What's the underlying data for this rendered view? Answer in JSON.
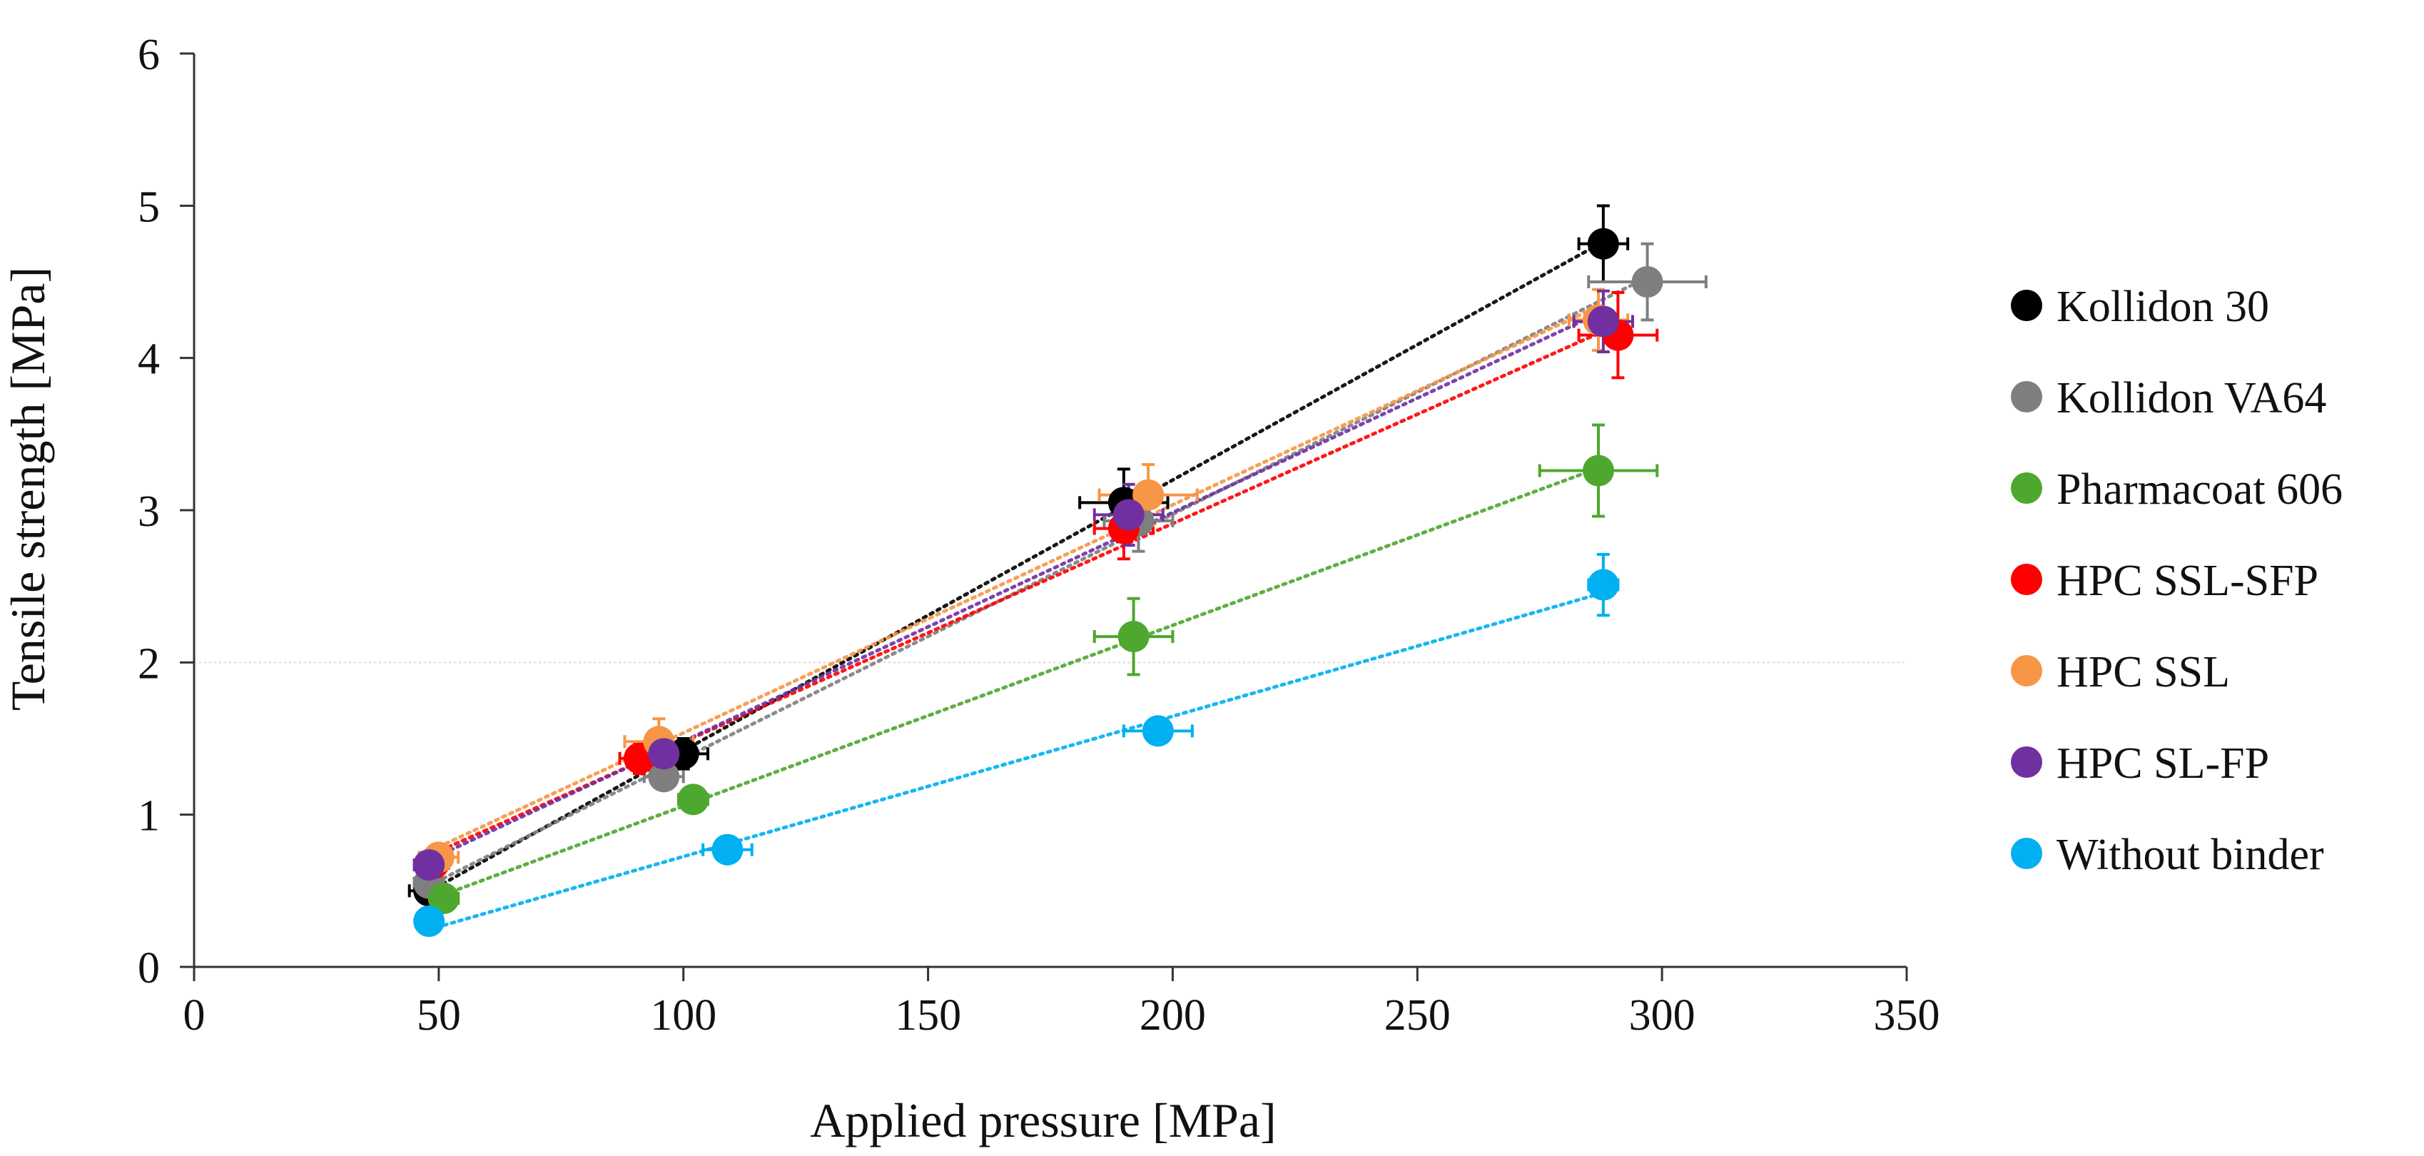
{
  "chart_data": {
    "type": "scatter",
    "title": "",
    "xlabel": "Applied pressure [MPa]",
    "ylabel": "Tensile strength [MPa]",
    "xlim": [
      0,
      350
    ],
    "ylim": [
      0,
      6
    ],
    "x_ticks": [
      0,
      50,
      100,
      150,
      200,
      250,
      300,
      350
    ],
    "y_ticks": [
      0,
      1,
      2,
      3,
      4,
      5,
      6
    ],
    "grid": "single faint horizontal line at y = 2",
    "legend_position": "right",
    "trendlines": "dotted linear fit per series",
    "series": [
      {
        "name": "Kollidon 30",
        "color": "#000000",
        "x": [
          48,
          100,
          190,
          288
        ],
        "y": [
          0.5,
          1.4,
          3.05,
          4.75
        ],
        "x_err": [
          4,
          5,
          9,
          5
        ],
        "y_err": [
          0.05,
          0.1,
          0.22,
          0.25
        ]
      },
      {
        "name": "Kollidon VA64",
        "color": "#7f7f7f",
        "x": [
          48,
          96,
          193,
          297
        ],
        "y": [
          0.55,
          1.25,
          2.93,
          4.5
        ],
        "x_err": [
          3,
          4,
          7,
          12
        ],
        "y_err": [
          0.05,
          0.08,
          0.2,
          0.25
        ]
      },
      {
        "name": "Pharmacoat 606",
        "color": "#4ea72e",
        "x": [
          51,
          102,
          192,
          287
        ],
        "y": [
          0.45,
          1.1,
          2.17,
          3.26
        ],
        "x_err": [
          3,
          3,
          8,
          12
        ],
        "y_err": [
          0.05,
          0.07,
          0.25,
          0.3
        ]
      },
      {
        "name": "HPC SSL-SFP",
        "color": "#ff0000",
        "x": [
          49,
          91,
          190,
          291
        ],
        "y": [
          0.68,
          1.37,
          2.88,
          4.15
        ],
        "x_err": [
          3,
          4,
          6,
          8
        ],
        "y_err": [
          0.05,
          0.1,
          0.2,
          0.28
        ]
      },
      {
        "name": "HPC SSL",
        "color": "#f79646",
        "x": [
          50,
          95,
          195,
          287
        ],
        "y": [
          0.72,
          1.48,
          3.1,
          4.25
        ],
        "x_err": [
          4,
          7,
          10,
          6
        ],
        "y_err": [
          0.06,
          0.15,
          0.2,
          0.2
        ]
      },
      {
        "name": "HPC SL-FP",
        "color": "#7030a0",
        "x": [
          48,
          96,
          191,
          288
        ],
        "y": [
          0.67,
          1.4,
          2.97,
          4.24
        ],
        "x_err": [
          3,
          4,
          7,
          6
        ],
        "y_err": [
          0.05,
          0.1,
          0.2,
          0.2
        ]
      },
      {
        "name": "Without binder",
        "color": "#00b0f0",
        "x": [
          48,
          109,
          197,
          288
        ],
        "y": [
          0.3,
          0.77,
          1.55,
          2.51
        ],
        "x_err": [
          2,
          5,
          7,
          3
        ],
        "y_err": [
          0.04,
          0.05,
          0.06,
          0.2
        ]
      }
    ]
  }
}
